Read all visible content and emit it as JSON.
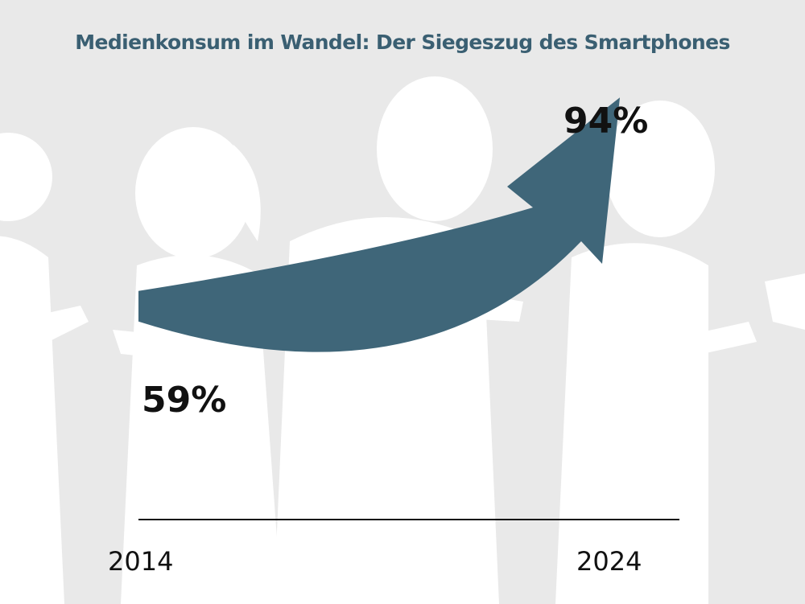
{
  "title": "Medienkonsum im Wandel: Der Siegeszug des Smartphones",
  "colors": {
    "background": "#e9e9e9",
    "silhouette": "#ffffff",
    "arrow": "#3f6679",
    "title": "#3a5f72",
    "text": "#111111",
    "baseline": "#111111"
  },
  "decoration": {
    "background_image": "silhouettes of people looking at smartphones"
  },
  "chart_data": {
    "type": "line",
    "title": "Medienkonsum im Wandel: Der Siegeszug des Smartphones",
    "xlabel": "",
    "ylabel": "",
    "categories": [
      "2014",
      "2024"
    ],
    "x": [
      2014,
      2024
    ],
    "values": [
      59,
      94
    ],
    "value_labels": [
      "59%",
      "94%"
    ],
    "unit": "%",
    "style": "upward curved arrow",
    "grid": false,
    "ylim": [
      50,
      100
    ]
  }
}
